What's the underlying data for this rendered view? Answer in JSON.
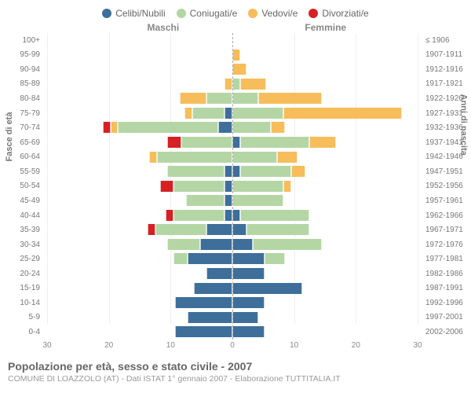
{
  "chart": {
    "type": "population-pyramid",
    "legend": [
      {
        "label": "Celibi/Nubili",
        "color": "#3e6f9b"
      },
      {
        "label": "Coniugati/e",
        "color": "#b4d6a4"
      },
      {
        "label": "Vedovi/e",
        "color": "#f6bd5a"
      },
      {
        "label": "Divorziati/e",
        "color": "#d62024"
      }
    ],
    "header_male": "Maschi",
    "header_female": "Femmine",
    "yaxis_left_title": "Fasce di età",
    "yaxis_right_title": "Anni di nascita",
    "x_max": 30,
    "x_ticks": [
      30,
      20,
      10,
      0,
      10,
      20,
      30
    ],
    "background_color": "#ffffff",
    "grid_color": "#efefef",
    "rows": [
      {
        "age": "100+",
        "birth": "≤ 1906",
        "m": [
          0,
          0,
          0,
          0
        ],
        "f": [
          0,
          0,
          0,
          0
        ]
      },
      {
        "age": "95-99",
        "birth": "1907-1911",
        "m": [
          0,
          0,
          0,
          0
        ],
        "f": [
          0,
          0,
          1,
          0
        ]
      },
      {
        "age": "90-94",
        "birth": "1912-1916",
        "m": [
          0,
          0,
          0,
          0
        ],
        "f": [
          0,
          0,
          2,
          0
        ]
      },
      {
        "age": "85-89",
        "birth": "1917-1921",
        "m": [
          0,
          0,
          1,
          0
        ],
        "f": [
          0,
          1,
          4,
          0
        ]
      },
      {
        "age": "80-84",
        "birth": "1922-1926",
        "m": [
          0,
          4,
          4,
          0
        ],
        "f": [
          0,
          4,
          10,
          0
        ]
      },
      {
        "age": "75-79",
        "birth": "1927-1931",
        "m": [
          1,
          5,
          1,
          0
        ],
        "f": [
          0,
          8,
          19,
          0
        ]
      },
      {
        "age": "70-74",
        "birth": "1932-1936",
        "m": [
          2,
          16,
          1,
          1
        ],
        "f": [
          0,
          6,
          2,
          0
        ]
      },
      {
        "age": "65-69",
        "birth": "1937-1941",
        "m": [
          0,
          8,
          0,
          2
        ],
        "f": [
          1,
          11,
          4,
          0
        ]
      },
      {
        "age": "60-64",
        "birth": "1942-1946",
        "m": [
          0,
          12,
          1,
          0
        ],
        "f": [
          0,
          7,
          3,
          0
        ]
      },
      {
        "age": "55-59",
        "birth": "1947-1951",
        "m": [
          1,
          9,
          0,
          0
        ],
        "f": [
          1,
          8,
          2,
          0
        ]
      },
      {
        "age": "50-54",
        "birth": "1952-1956",
        "m": [
          1,
          8,
          0,
          2
        ],
        "f": [
          0,
          8,
          1,
          0
        ]
      },
      {
        "age": "45-49",
        "birth": "1957-1961",
        "m": [
          1,
          6,
          0,
          0
        ],
        "f": [
          0,
          8,
          0,
          0
        ]
      },
      {
        "age": "40-44",
        "birth": "1962-1966",
        "m": [
          1,
          8,
          0,
          1
        ],
        "f": [
          1,
          11,
          0,
          0
        ]
      },
      {
        "age": "35-39",
        "birth": "1967-1971",
        "m": [
          4,
          8,
          0,
          1
        ],
        "f": [
          2,
          10,
          0,
          0
        ]
      },
      {
        "age": "30-34",
        "birth": "1972-1976",
        "m": [
          5,
          5,
          0,
          0
        ],
        "f": [
          3,
          11,
          0,
          0
        ]
      },
      {
        "age": "25-29",
        "birth": "1977-1981",
        "m": [
          7,
          2,
          0,
          0
        ],
        "f": [
          5,
          3,
          0,
          0
        ]
      },
      {
        "age": "20-24",
        "birth": "1982-1986",
        "m": [
          4,
          0,
          0,
          0
        ],
        "f": [
          5,
          0,
          0,
          0
        ]
      },
      {
        "age": "15-19",
        "birth": "1987-1991",
        "m": [
          6,
          0,
          0,
          0
        ],
        "f": [
          11,
          0,
          0,
          0
        ]
      },
      {
        "age": "10-14",
        "birth": "1992-1996",
        "m": [
          9,
          0,
          0,
          0
        ],
        "f": [
          5,
          0,
          0,
          0
        ]
      },
      {
        "age": "5-9",
        "birth": "1997-2001",
        "m": [
          7,
          0,
          0,
          0
        ],
        "f": [
          4,
          0,
          0,
          0
        ]
      },
      {
        "age": "0-4",
        "birth": "2002-2006",
        "m": [
          9,
          0,
          0,
          0
        ],
        "f": [
          5,
          0,
          0,
          0
        ]
      }
    ],
    "footer_title": "Popolazione per età, sesso e stato civile - 2007",
    "footer_sub": "COMUNE DI LOAZZOLO (AT) - Dati ISTAT 1° gennaio 2007 - Elaborazione TUTTITALIA.IT"
  }
}
